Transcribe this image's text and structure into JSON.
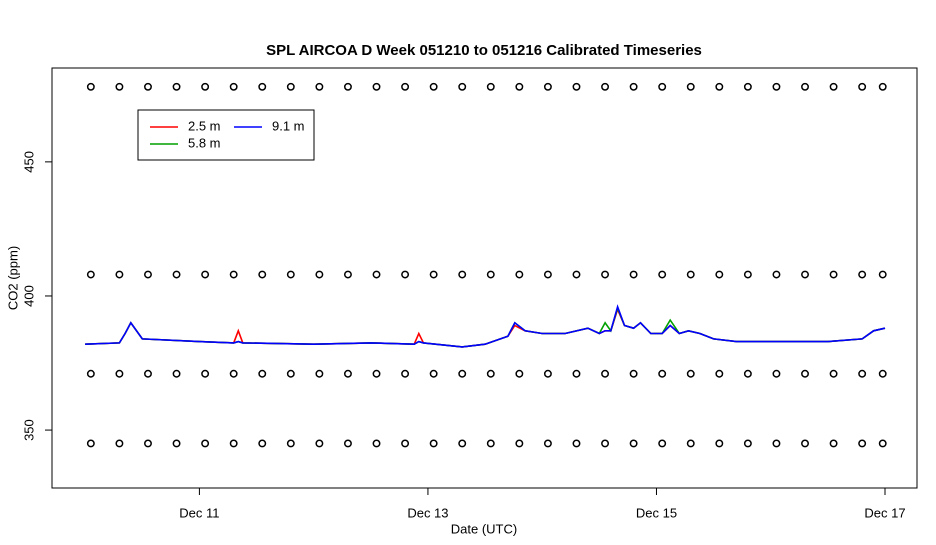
{
  "chart_data": {
    "type": "line",
    "title": "SPL AIRCOA D  Week 051210 to 051216  Calibrated Timeseries",
    "x_label": "Date (UTC)",
    "y_label": "CO2 (ppm)",
    "xlim": [
      9.71,
      17.28
    ],
    "ylim": [
      328.4,
      485
    ],
    "xticks": [
      {
        "value": 11,
        "label": "Dec 11"
      },
      {
        "value": 13,
        "label": "Dec 13"
      },
      {
        "value": 15,
        "label": "Dec 15"
      },
      {
        "value": 17,
        "label": "Dec 17"
      }
    ],
    "yticks": [
      350,
      400,
      450
    ],
    "legend": "top-left",
    "x": [
      10.0,
      10.3,
      10.35,
      10.4,
      10.5,
      11.0,
      11.3,
      11.34,
      11.38,
      12.0,
      12.5,
      12.88,
      12.92,
      12.96,
      13.3,
      13.5,
      13.7,
      13.76,
      13.85,
      14.0,
      14.2,
      14.4,
      14.5,
      14.55,
      14.6,
      14.66,
      14.72,
      14.8,
      14.86,
      14.95,
      15.05,
      15.12,
      15.2,
      15.28,
      15.38,
      15.5,
      15.7,
      16.0,
      16.5,
      16.8,
      16.9,
      17.0
    ],
    "series": [
      {
        "name": "2.5 m",
        "color": "#ff0000",
        "values": [
          382,
          382.5,
          386,
          390,
          384,
          383,
          382.5,
          387,
          382.5,
          382,
          382.5,
          382,
          386,
          382.5,
          381,
          382,
          385,
          389,
          387,
          386,
          386,
          388,
          386,
          387,
          387,
          395,
          389,
          388,
          390,
          386,
          386,
          389,
          386,
          387,
          386,
          384,
          383,
          383,
          383,
          384,
          387,
          388
        ]
      },
      {
        "name": "5.8 m",
        "color": "#00a000",
        "values": [
          382,
          382.5,
          386,
          390,
          384,
          383,
          382.5,
          383,
          382.5,
          382,
          382.5,
          382,
          383,
          382.5,
          381,
          382,
          385,
          390,
          387,
          386,
          386,
          388,
          386,
          390,
          387,
          395.5,
          389,
          388,
          390,
          386,
          386,
          391,
          386,
          387,
          386,
          384,
          383,
          383,
          383,
          384,
          387,
          388
        ]
      },
      {
        "name": "9.1 m",
        "color": "#0000ff",
        "values": [
          382,
          382.5,
          386,
          390,
          384,
          383,
          382.5,
          383,
          382.5,
          382,
          382.5,
          382,
          383,
          382.5,
          381,
          382,
          385,
          390,
          387,
          386,
          386,
          388,
          386,
          387,
          387,
          396,
          389,
          388,
          390,
          386,
          386,
          389,
          386,
          387,
          386,
          384,
          383,
          383,
          383,
          384,
          387,
          388
        ]
      }
    ],
    "points": {
      "x": [
        10.05,
        10.3,
        10.55,
        10.8,
        11.05,
        11.3,
        11.55,
        11.8,
        12.05,
        12.3,
        12.55,
        12.8,
        13.05,
        13.3,
        13.55,
        13.8,
        14.05,
        14.3,
        14.55,
        14.8,
        15.05,
        15.3,
        15.55,
        15.8,
        16.05,
        16.3,
        16.55,
        16.8,
        16.98
      ],
      "levels": [
        478,
        408,
        371,
        345
      ]
    }
  }
}
